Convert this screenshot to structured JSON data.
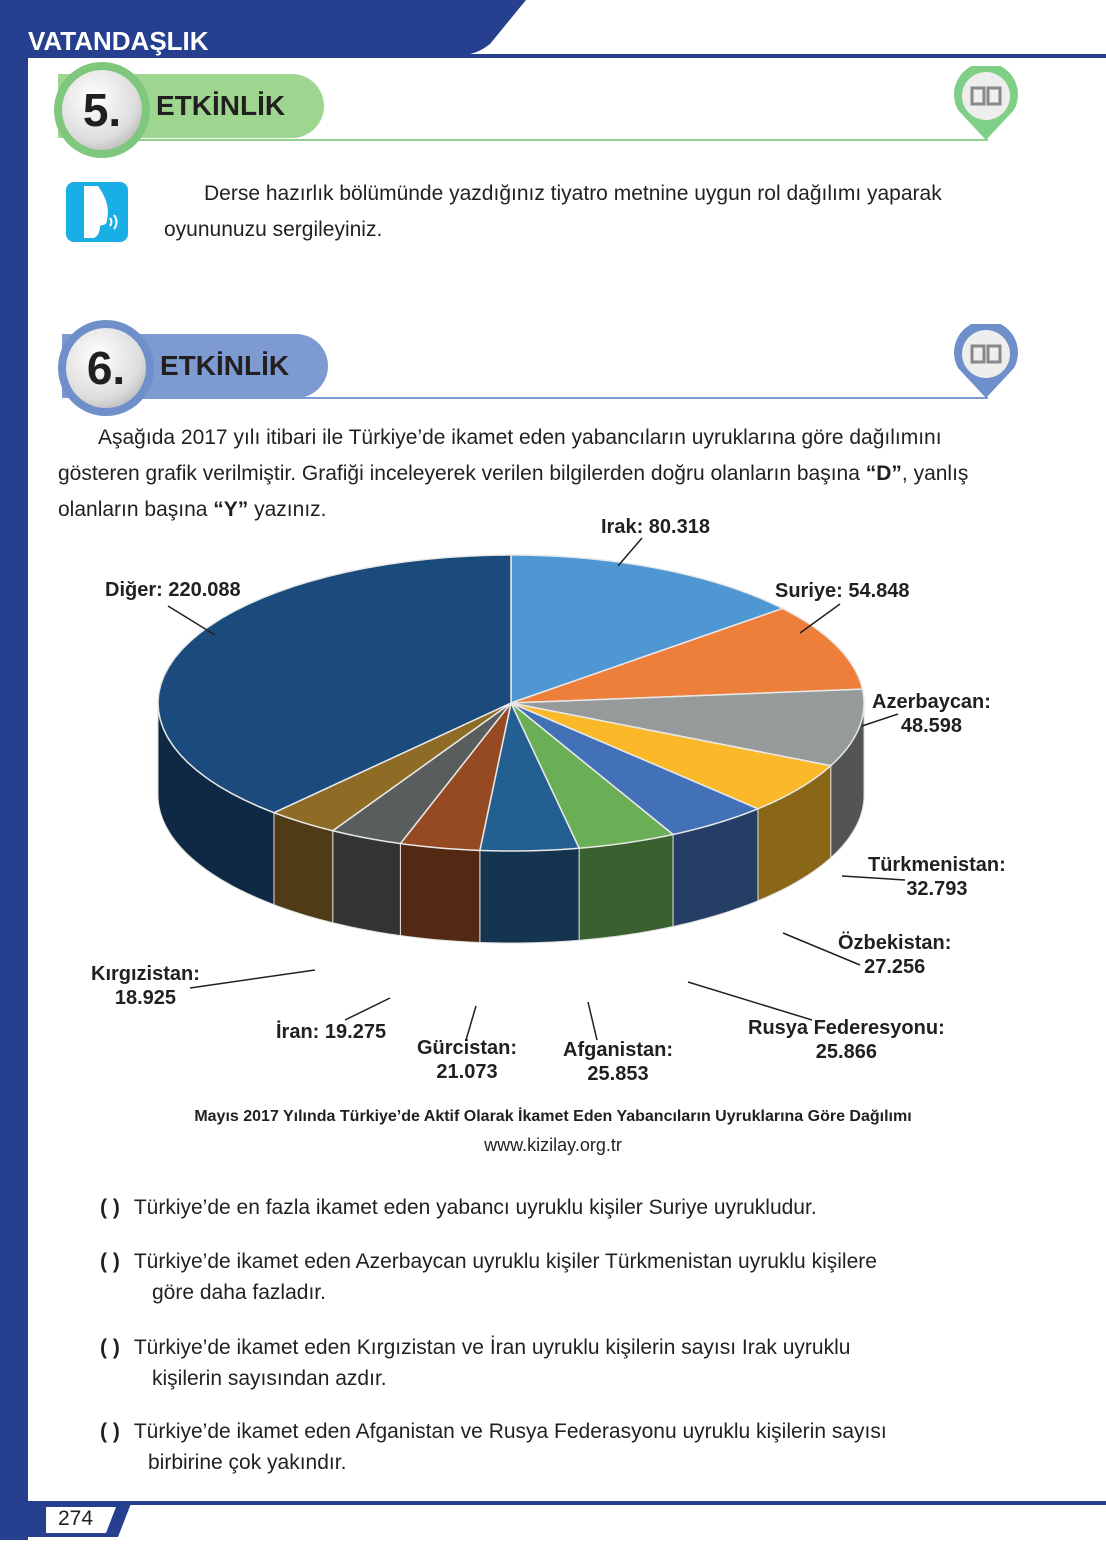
{
  "header": {
    "subject": "VATANDAŞLIK"
  },
  "activity5": {
    "number": "5.",
    "title": "ETKİNLİK",
    "text": "Derse hazırlık bölümünde yazdığınız tiyatro metnine uygun rol dağılımı yaparak oyununuzu sergileyiniz.",
    "accent": "#9fd68f"
  },
  "activity6": {
    "number": "6.",
    "title": "ETKİNLİK",
    "intro_1": "Aşağıda 2017 yılı itibari ile Türkiye’de ikamet eden yabancıların uyruklarına göre dağılımını gösteren grafik verilmiştir. Grafiği inceleyerek verilen bilgilerden doğru olanların başına ",
    "d": "“D”",
    "intro_2": ", yanlış olanların başına ",
    "y": "“Y”",
    "intro_3": " yazınız.",
    "accent": "#7d9bd1"
  },
  "chart_data": {
    "type": "pie",
    "title": "Mayıs 2017 Yılında Türkiye’de Aktif Olarak İkamet Eden Yabancıların Uyruklarına Göre Dağılımı",
    "source": "www.kizilay.org.tr",
    "slices": [
      {
        "name": "Irak",
        "label": "Irak: 80.318",
        "value": 80318,
        "color": "#4f97d3"
      },
      {
        "name": "Suriye",
        "label": "Suriye: 54.848",
        "value": 54848,
        "color": "#ee7f3a"
      },
      {
        "name": "Azerbaycan",
        "label": "Azerbaycan:",
        "value_label": "48.598",
        "value": 48598,
        "color": "#979a9a"
      },
      {
        "name": "Türkmenistan",
        "label": "Türkmenistan:",
        "value_label": "32.793",
        "value": 32793,
        "color": "#fbb929"
      },
      {
        "name": "Özbekistan",
        "label": "Özbekistan:",
        "value_label": "27.256",
        "value": 27256,
        "color": "#4271b8"
      },
      {
        "name": "Rusya Federesyonu",
        "label": "Rusya Federesyonu:",
        "value_label": "25.866",
        "value": 25866,
        "color": "#6aaf55"
      },
      {
        "name": "Afganistan",
        "label": "Afganistan:",
        "value_label": "25.853",
        "value": 25853,
        "color": "#245f91"
      },
      {
        "name": "Gürcistan",
        "label": "Gürcistan:",
        "value_label": "21.073",
        "value": 21073,
        "color": "#964a22"
      },
      {
        "name": "İran",
        "label": "İran: 19.275",
        "value": 19275,
        "color": "#5a5d5d"
      },
      {
        "name": "Kırgızistan",
        "label": "Kırgızistan:",
        "value_label": "18.925",
        "value": 18925,
        "color": "#8f6c26"
      },
      {
        "name": "Diğer",
        "label": "Diğer: 220.088",
        "value": 220088,
        "color": "#1b4a7c"
      }
    ]
  },
  "questions": [
    {
      "paren": "(   )",
      "text": "Türkiye’de en fazla ikamet eden yabancı uyruklu kişiler Suriye uyrukludur.",
      "cont": ""
    },
    {
      "paren": "(   )",
      "text": "Türkiye’de ikamet eden Azerbaycan uyruklu kişiler Türkmenistan uyruklu kişilere",
      "cont": "göre daha fazladır."
    },
    {
      "paren": "(   )",
      "text": "Türkiye’de ikamet eden Kırgızistan ve İran uyruklu kişilerin sayısı Irak uyruklu",
      "cont": "kişilerin sayısından azdır."
    },
    {
      "paren": "(   )",
      "text": "Türkiye’de ikamet eden Afganistan ve Rusya Federasyonu uyruklu kişilerin sayısı",
      "cont": "birbirine çok yakındır."
    }
  ],
  "footer": {
    "page": "274"
  }
}
